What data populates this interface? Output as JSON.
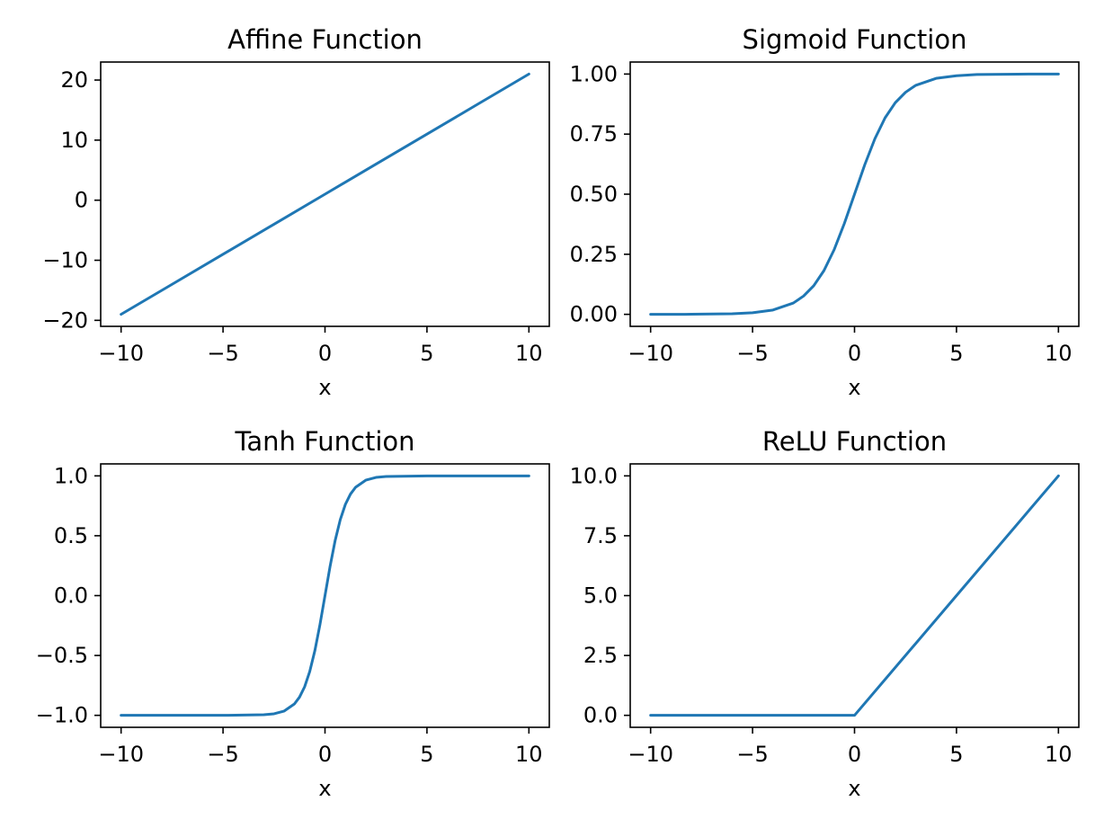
{
  "chart_data": [
    {
      "type": "line",
      "title": "Affine Function",
      "xlabel": "x",
      "ylabel": "",
      "xlim": [
        -11,
        11
      ],
      "ylim": [
        -21,
        23
      ],
      "xticks": [
        -10,
        -5,
        0,
        5,
        10
      ],
      "xtick_labels": [
        "−10",
        "−5",
        "0",
        "5",
        "10"
      ],
      "yticks": [
        -20,
        -10,
        0,
        10,
        20
      ],
      "ytick_labels": [
        "−20",
        "−10",
        "0",
        "10",
        "20"
      ],
      "grid": false,
      "color": "#1f77b4",
      "x": [
        -10,
        -7.5,
        -5,
        -2.5,
        0,
        2.5,
        5,
        7.5,
        10
      ],
      "y": [
        -19,
        -14,
        -9,
        -4,
        1,
        6,
        11,
        16,
        21
      ]
    },
    {
      "type": "line",
      "title": "Sigmoid Function",
      "xlabel": "x",
      "ylabel": "",
      "xlim": [
        -11,
        11
      ],
      "ylim": [
        -0.05,
        1.05
      ],
      "xticks": [
        -10,
        -5,
        0,
        5,
        10
      ],
      "xtick_labels": [
        "−10",
        "−5",
        "0",
        "5",
        "10"
      ],
      "yticks": [
        0,
        0.25,
        0.5,
        0.75,
        1
      ],
      "ytick_labels": [
        "0.00",
        "0.25",
        "0.50",
        "0.75",
        "1.00"
      ],
      "grid": false,
      "color": "#1f77b4",
      "x": [
        -10,
        -8,
        -6,
        -5,
        -4,
        -3,
        -2.5,
        -2,
        -1.5,
        -1,
        -0.5,
        0,
        0.5,
        1,
        1.5,
        2,
        2.5,
        3,
        4,
        5,
        6,
        8,
        10
      ],
      "y": [
        0.0,
        0.0003,
        0.0025,
        0.0067,
        0.018,
        0.047,
        0.076,
        0.119,
        0.182,
        0.269,
        0.378,
        0.5,
        0.622,
        0.731,
        0.818,
        0.881,
        0.924,
        0.953,
        0.982,
        0.993,
        0.998,
        0.9997,
        1.0
      ]
    },
    {
      "type": "line",
      "title": "Tanh Function",
      "xlabel": "x",
      "ylabel": "",
      "xlim": [
        -11,
        11
      ],
      "ylim": [
        -1.1,
        1.1
      ],
      "xticks": [
        -10,
        -5,
        0,
        5,
        10
      ],
      "xtick_labels": [
        "−10",
        "−5",
        "0",
        "5",
        "10"
      ],
      "yticks": [
        -1,
        -0.5,
        0,
        0.5,
        1
      ],
      "ytick_labels": [
        "−1.0",
        "−0.5",
        "0.0",
        "0.5",
        "1.0"
      ],
      "grid": false,
      "color": "#1f77b4",
      "x": [
        -10,
        -5,
        -3,
        -2.5,
        -2,
        -1.5,
        -1.25,
        -1,
        -0.75,
        -0.5,
        -0.25,
        0,
        0.25,
        0.5,
        0.75,
        1,
        1.25,
        1.5,
        2,
        2.5,
        3,
        5,
        10
      ],
      "y": [
        -1.0,
        -1.0,
        -0.995,
        -0.987,
        -0.964,
        -0.905,
        -0.848,
        -0.762,
        -0.635,
        -0.462,
        -0.245,
        0.0,
        0.245,
        0.462,
        0.635,
        0.762,
        0.848,
        0.905,
        0.964,
        0.987,
        0.995,
        1.0,
        1.0
      ]
    },
    {
      "type": "line",
      "title": "ReLU Function",
      "xlabel": "x",
      "ylabel": "",
      "xlim": [
        -11,
        11
      ],
      "ylim": [
        -0.5,
        10.5
      ],
      "xticks": [
        -10,
        -5,
        0,
        5,
        10
      ],
      "xtick_labels": [
        "−10",
        "−5",
        "0",
        "5",
        "10"
      ],
      "yticks": [
        0,
        2.5,
        5,
        7.5,
        10
      ],
      "ytick_labels": [
        "0.0",
        "2.5",
        "5.0",
        "7.5",
        "10.0"
      ],
      "grid": false,
      "color": "#1f77b4",
      "x": [
        -10,
        -5,
        0,
        5,
        10
      ],
      "y": [
        0,
        0,
        0,
        5,
        10
      ]
    }
  ]
}
